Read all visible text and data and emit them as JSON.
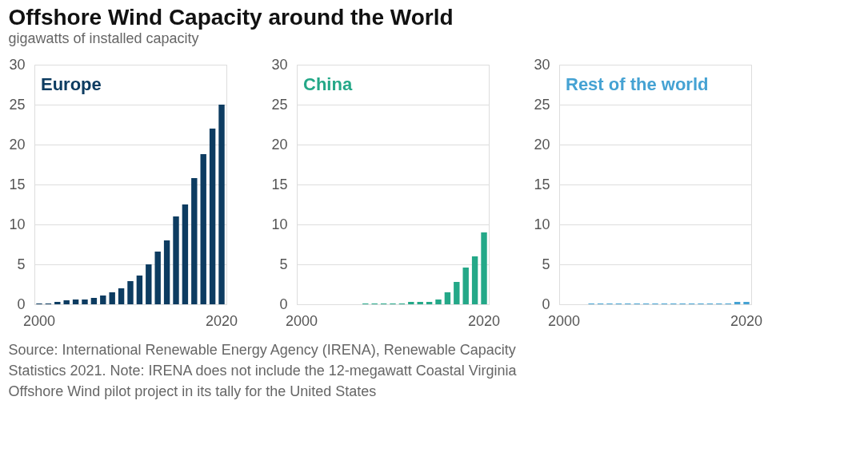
{
  "chart_data": [
    {
      "type": "bar",
      "title": "Offshore Wind Capacity around the World",
      "subtitle": "gigawatts of installed capacity",
      "categories": [
        "2000",
        null,
        null,
        null,
        null,
        null,
        null,
        null,
        null,
        null,
        null,
        null,
        null,
        null,
        null,
        null,
        null,
        null,
        null,
        null,
        "2020"
      ],
      "series": [
        {
          "name": "Europe",
          "color": "#0d3c61",
          "values": [
            0.1,
            0.1,
            0.3,
            0.5,
            0.6,
            0.6,
            0.8,
            1.1,
            1.5,
            2.0,
            2.9,
            3.6,
            5.0,
            6.6,
            8.0,
            11.0,
            12.5,
            15.8,
            18.8,
            22.0,
            25.0
          ]
        }
      ],
      "ylim": [
        0,
        30
      ],
      "yticks": [
        0,
        5,
        10,
        15,
        20,
        25,
        30
      ],
      "grid": "y",
      "legend": false,
      "annotations": [
        "Source: International Renewable Energy Agency (IRENA), Renewable Capacity Statistics 2021. Note: IRENA does not include the 12-megawatt Coastal Virginia Offshore Wind pilot project in its tally for the United States"
      ]
    },
    {
      "type": "bar",
      "categories": [
        "2000",
        null,
        null,
        null,
        null,
        null,
        null,
        null,
        null,
        null,
        null,
        null,
        null,
        null,
        null,
        null,
        null,
        null,
        null,
        null,
        "2020"
      ],
      "series": [
        {
          "name": "China",
          "color": "#24a888",
          "values": [
            null,
            null,
            null,
            null,
            null,
            null,
            null,
            0.1,
            0.1,
            0.1,
            0.1,
            0.1,
            0.3,
            0.3,
            0.3,
            0.6,
            1.5,
            2.8,
            4.6,
            6.0,
            9.0
          ]
        }
      ],
      "ylim": [
        0,
        30
      ],
      "yticks": [
        0,
        5,
        10,
        15,
        20,
        25,
        30
      ],
      "grid": "y",
      "legend": false
    },
    {
      "type": "bar",
      "categories": [
        "2000",
        null,
        null,
        null,
        null,
        null,
        null,
        null,
        null,
        null,
        null,
        null,
        null,
        null,
        null,
        null,
        null,
        null,
        null,
        null,
        "2020"
      ],
      "series": [
        {
          "name": "Rest of the world",
          "color": "#45a2d3",
          "values": [
            null,
            null,
            null,
            0.1,
            0.1,
            0.1,
            0.1,
            0.1,
            0.1,
            0.1,
            0.1,
            0.1,
            0.1,
            0.1,
            0.1,
            0.1,
            0.1,
            0.1,
            0.1,
            0.3,
            0.3
          ]
        }
      ],
      "ylim": [
        0,
        30
      ],
      "yticks": [
        0,
        5,
        10,
        15,
        20,
        25,
        30
      ],
      "grid": "y",
      "legend": false
    }
  ]
}
